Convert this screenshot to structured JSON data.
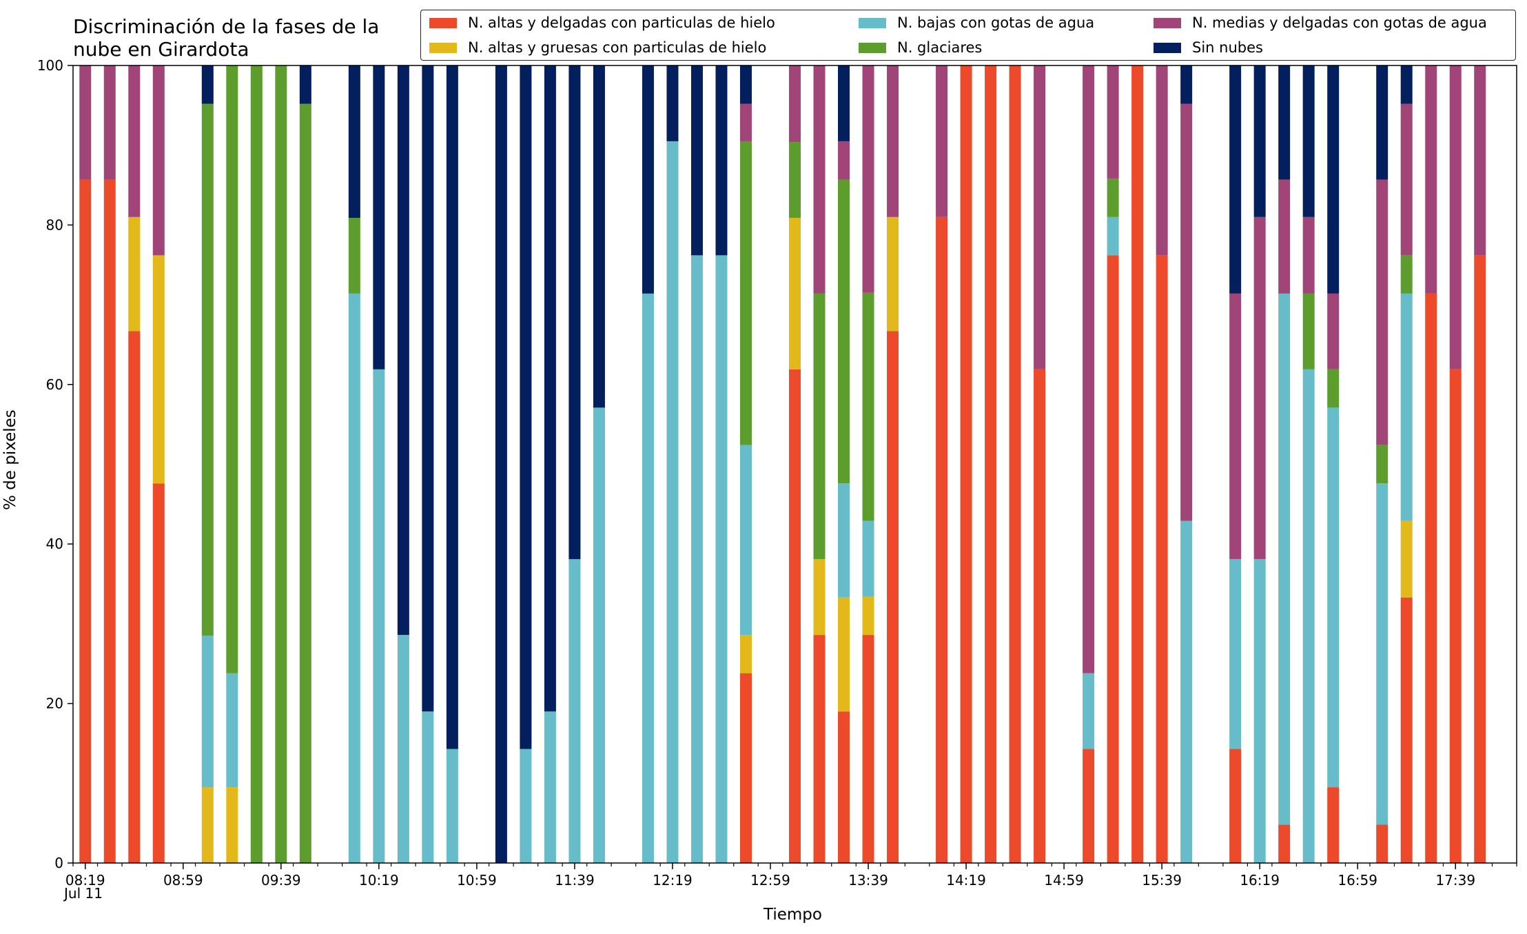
{
  "title": "Discriminación de la fases de la\nnube en Girardota",
  "chart_data": {
    "type": "stacked_bar",
    "title": "Discriminación de la fases de la\nnube en Girardota",
    "xlabel": "Tiempo",
    "ylabel": "% de pixeles",
    "ylim": [
      0,
      100
    ],
    "yticks": [
      "0",
      "20",
      "40",
      "60",
      "80",
      "100"
    ],
    "x_date_label": "Jul 11",
    "x_range": [
      "08:14",
      "18:04"
    ],
    "xtick_labels": [
      "08:19",
      "08:59",
      "09:39",
      "10:19",
      "10:59",
      "11:39",
      "12:19",
      "12:59",
      "13:39",
      "14:19",
      "14:59",
      "15:39",
      "16:19",
      "16:59",
      "17:39"
    ],
    "minor_tick_minutes": 10,
    "bar_interval_minutes": 10,
    "grid": false,
    "legend_position": "top-right",
    "legend_columns": 3,
    "series": [
      {
        "name": "N. altas y delgadas con particulas de hielo",
        "color": "#ec4a2b"
      },
      {
        "name": "N. altas y gruesas con particulas de hielo",
        "color": "#e2b81a"
      },
      {
        "name": "N. bajas con gotas de agua",
        "color": "#67bcc9"
      },
      {
        "name": "N. glaciares",
        "color": "#5c9d2d"
      },
      {
        "name": "N. medias y delgadas con gotas de agua",
        "color": "#a14478"
      },
      {
        "name": "Sin nubes",
        "color": "#031f5d"
      }
    ],
    "bars": [
      {
        "time": "08:19",
        "values": [
          85.7,
          0,
          0,
          0,
          14.3,
          0
        ]
      },
      {
        "time": "08:29",
        "values": [
          85.7,
          0,
          0,
          0,
          14.3,
          0
        ]
      },
      {
        "time": "08:39",
        "values": [
          66.7,
          14.3,
          0,
          0,
          19.0,
          0
        ]
      },
      {
        "time": "08:49",
        "values": [
          47.6,
          28.6,
          0,
          0,
          23.8,
          0
        ]
      },
      {
        "time": "09:09",
        "values": [
          0,
          9.5,
          19.0,
          66.7,
          0,
          4.8
        ]
      },
      {
        "time": "09:19",
        "values": [
          0,
          9.5,
          14.3,
          76.2,
          0,
          0
        ]
      },
      {
        "time": "09:29",
        "values": [
          0,
          0,
          0,
          100,
          0,
          0
        ]
      },
      {
        "time": "09:39",
        "values": [
          0,
          0,
          0,
          100,
          0,
          0
        ]
      },
      {
        "time": "09:49",
        "values": [
          0,
          0,
          0,
          95.2,
          0,
          4.8
        ]
      },
      {
        "time": "10:09",
        "values": [
          0,
          0,
          71.4,
          9.5,
          0,
          19.1
        ]
      },
      {
        "time": "10:19",
        "values": [
          0,
          0,
          61.9,
          0,
          0,
          38.1
        ]
      },
      {
        "time": "10:29",
        "values": [
          0,
          0,
          28.6,
          0,
          0,
          71.4
        ]
      },
      {
        "time": "10:39",
        "values": [
          0,
          0,
          19.0,
          0,
          0,
          81.0
        ]
      },
      {
        "time": "10:49",
        "values": [
          0,
          0,
          14.3,
          0,
          0,
          85.7
        ]
      },
      {
        "time": "11:09",
        "values": [
          0,
          0,
          0,
          0,
          0,
          100
        ]
      },
      {
        "time": "11:19",
        "values": [
          0,
          0,
          14.3,
          0,
          0,
          85.7
        ]
      },
      {
        "time": "11:29",
        "values": [
          0,
          0,
          19.0,
          0,
          0,
          81.0
        ]
      },
      {
        "time": "11:39",
        "values": [
          0,
          0,
          38.1,
          0,
          0,
          61.9
        ]
      },
      {
        "time": "11:49",
        "values": [
          0,
          0,
          57.1,
          0,
          0,
          42.9
        ]
      },
      {
        "time": "12:09",
        "values": [
          0,
          0,
          71.4,
          0,
          0,
          28.6
        ]
      },
      {
        "time": "12:19",
        "values": [
          0,
          0,
          90.5,
          0,
          0,
          9.5
        ]
      },
      {
        "time": "12:29",
        "values": [
          0,
          0,
          76.2,
          0,
          0,
          23.8
        ]
      },
      {
        "time": "12:39",
        "values": [
          0,
          0,
          76.2,
          0,
          0,
          23.8
        ]
      },
      {
        "time": "12:49",
        "values": [
          23.8,
          4.8,
          23.8,
          38.1,
          4.7,
          4.8
        ]
      },
      {
        "time": "13:09",
        "values": [
          61.9,
          19.0,
          0,
          9.5,
          9.6,
          0
        ]
      },
      {
        "time": "13:19",
        "values": [
          28.6,
          9.5,
          0,
          33.3,
          28.6,
          0
        ]
      },
      {
        "time": "13:29",
        "values": [
          19.0,
          14.3,
          14.3,
          38.1,
          4.8,
          9.5
        ]
      },
      {
        "time": "13:39",
        "values": [
          28.6,
          4.8,
          9.5,
          28.6,
          28.5,
          0
        ]
      },
      {
        "time": "13:49",
        "values": [
          66.7,
          14.3,
          0,
          0,
          19.0,
          0
        ]
      },
      {
        "time": "14:09",
        "values": [
          81.0,
          0,
          0,
          0,
          19.0,
          0
        ]
      },
      {
        "time": "14:19",
        "values": [
          100,
          0,
          0,
          0,
          0,
          0
        ]
      },
      {
        "time": "14:29",
        "values": [
          100,
          0,
          0,
          0,
          0,
          0
        ]
      },
      {
        "time": "14:39",
        "values": [
          100,
          0,
          0,
          0,
          0,
          0
        ]
      },
      {
        "time": "14:49",
        "values": [
          61.9,
          0,
          0,
          0,
          38.1,
          0
        ]
      },
      {
        "time": "15:09",
        "values": [
          14.3,
          0,
          9.5,
          0,
          76.2,
          0
        ]
      },
      {
        "time": "15:19",
        "values": [
          76.2,
          0,
          4.8,
          4.8,
          14.2,
          0
        ]
      },
      {
        "time": "15:29",
        "values": [
          100,
          0,
          0,
          0,
          0,
          0
        ]
      },
      {
        "time": "15:39",
        "values": [
          76.2,
          0,
          0,
          0,
          23.8,
          0
        ]
      },
      {
        "time": "15:49",
        "values": [
          0,
          0,
          42.9,
          0,
          52.3,
          4.8
        ]
      },
      {
        "time": "16:09",
        "values": [
          14.3,
          0,
          23.8,
          0,
          33.3,
          28.6
        ]
      },
      {
        "time": "16:19",
        "values": [
          0,
          0,
          38.1,
          0,
          42.9,
          19.0
        ]
      },
      {
        "time": "16:29",
        "values": [
          4.8,
          0,
          66.6,
          0,
          14.3,
          14.3
        ]
      },
      {
        "time": "16:39",
        "values": [
          0,
          0,
          61.9,
          9.5,
          9.6,
          19.0
        ]
      },
      {
        "time": "16:49",
        "values": [
          9.5,
          0,
          47.6,
          4.8,
          9.5,
          28.6
        ]
      },
      {
        "time": "17:09",
        "values": [
          4.8,
          0,
          42.8,
          4.8,
          33.3,
          14.3
        ]
      },
      {
        "time": "17:19",
        "values": [
          33.3,
          9.6,
          28.5,
          4.8,
          19.0,
          4.8
        ]
      },
      {
        "time": "17:29",
        "values": [
          71.4,
          0,
          0,
          0,
          28.6,
          0
        ]
      },
      {
        "time": "17:39",
        "values": [
          61.9,
          0,
          0,
          0,
          38.1,
          0
        ]
      },
      {
        "time": "17:49",
        "values": [
          76.2,
          0,
          0,
          0,
          23.8,
          0
        ]
      }
    ]
  }
}
